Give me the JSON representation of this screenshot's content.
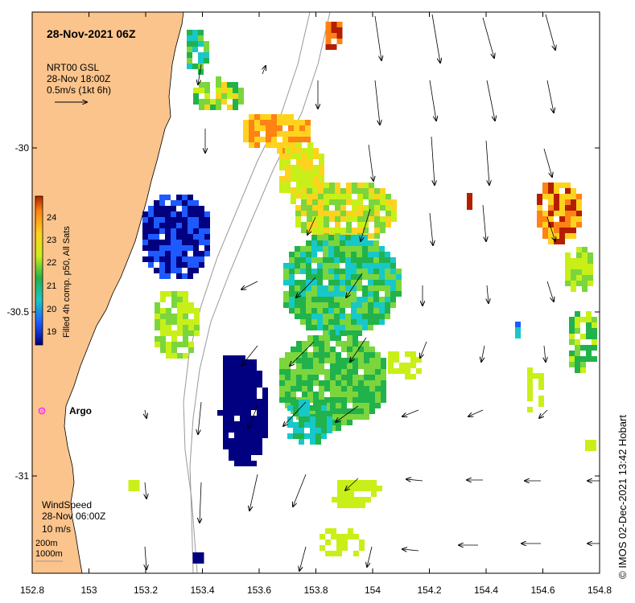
{
  "title": "28-Nov-2021 06Z",
  "current_legend": {
    "line1": "NRT00 GSL",
    "line2": "28-Nov 18:00Z",
    "line3": "0.5m/s (1kt 6h)"
  },
  "colorbar": {
    "label": "Filled 4h comp. p50, All Sats",
    "ticks": [
      "24",
      "23",
      "22",
      "21",
      "20",
      "19"
    ]
  },
  "wind_legend": {
    "line1": "WindSpeed",
    "line2": "28-Nov 06:00Z",
    "line3": "10 m/s"
  },
  "isobath_legend": {
    "line1": "200m",
    "line2": "1000m"
  },
  "argo_label": "Argo",
  "credit": "© IMOS 02-Dec-2021 13:42 Hobart",
  "x_ticks": [
    "152.8",
    "153",
    "153.2",
    "153.4",
    "153.6",
    "153.8",
    "154",
    "154.2",
    "154.4",
    "154.6",
    "154.8"
  ],
  "y_ticks": [
    "-30",
    "-30.5",
    "-31"
  ],
  "colors": {
    "land": "#fbc48c",
    "frame": "#000000",
    "argo": "#ff33ff"
  }
}
